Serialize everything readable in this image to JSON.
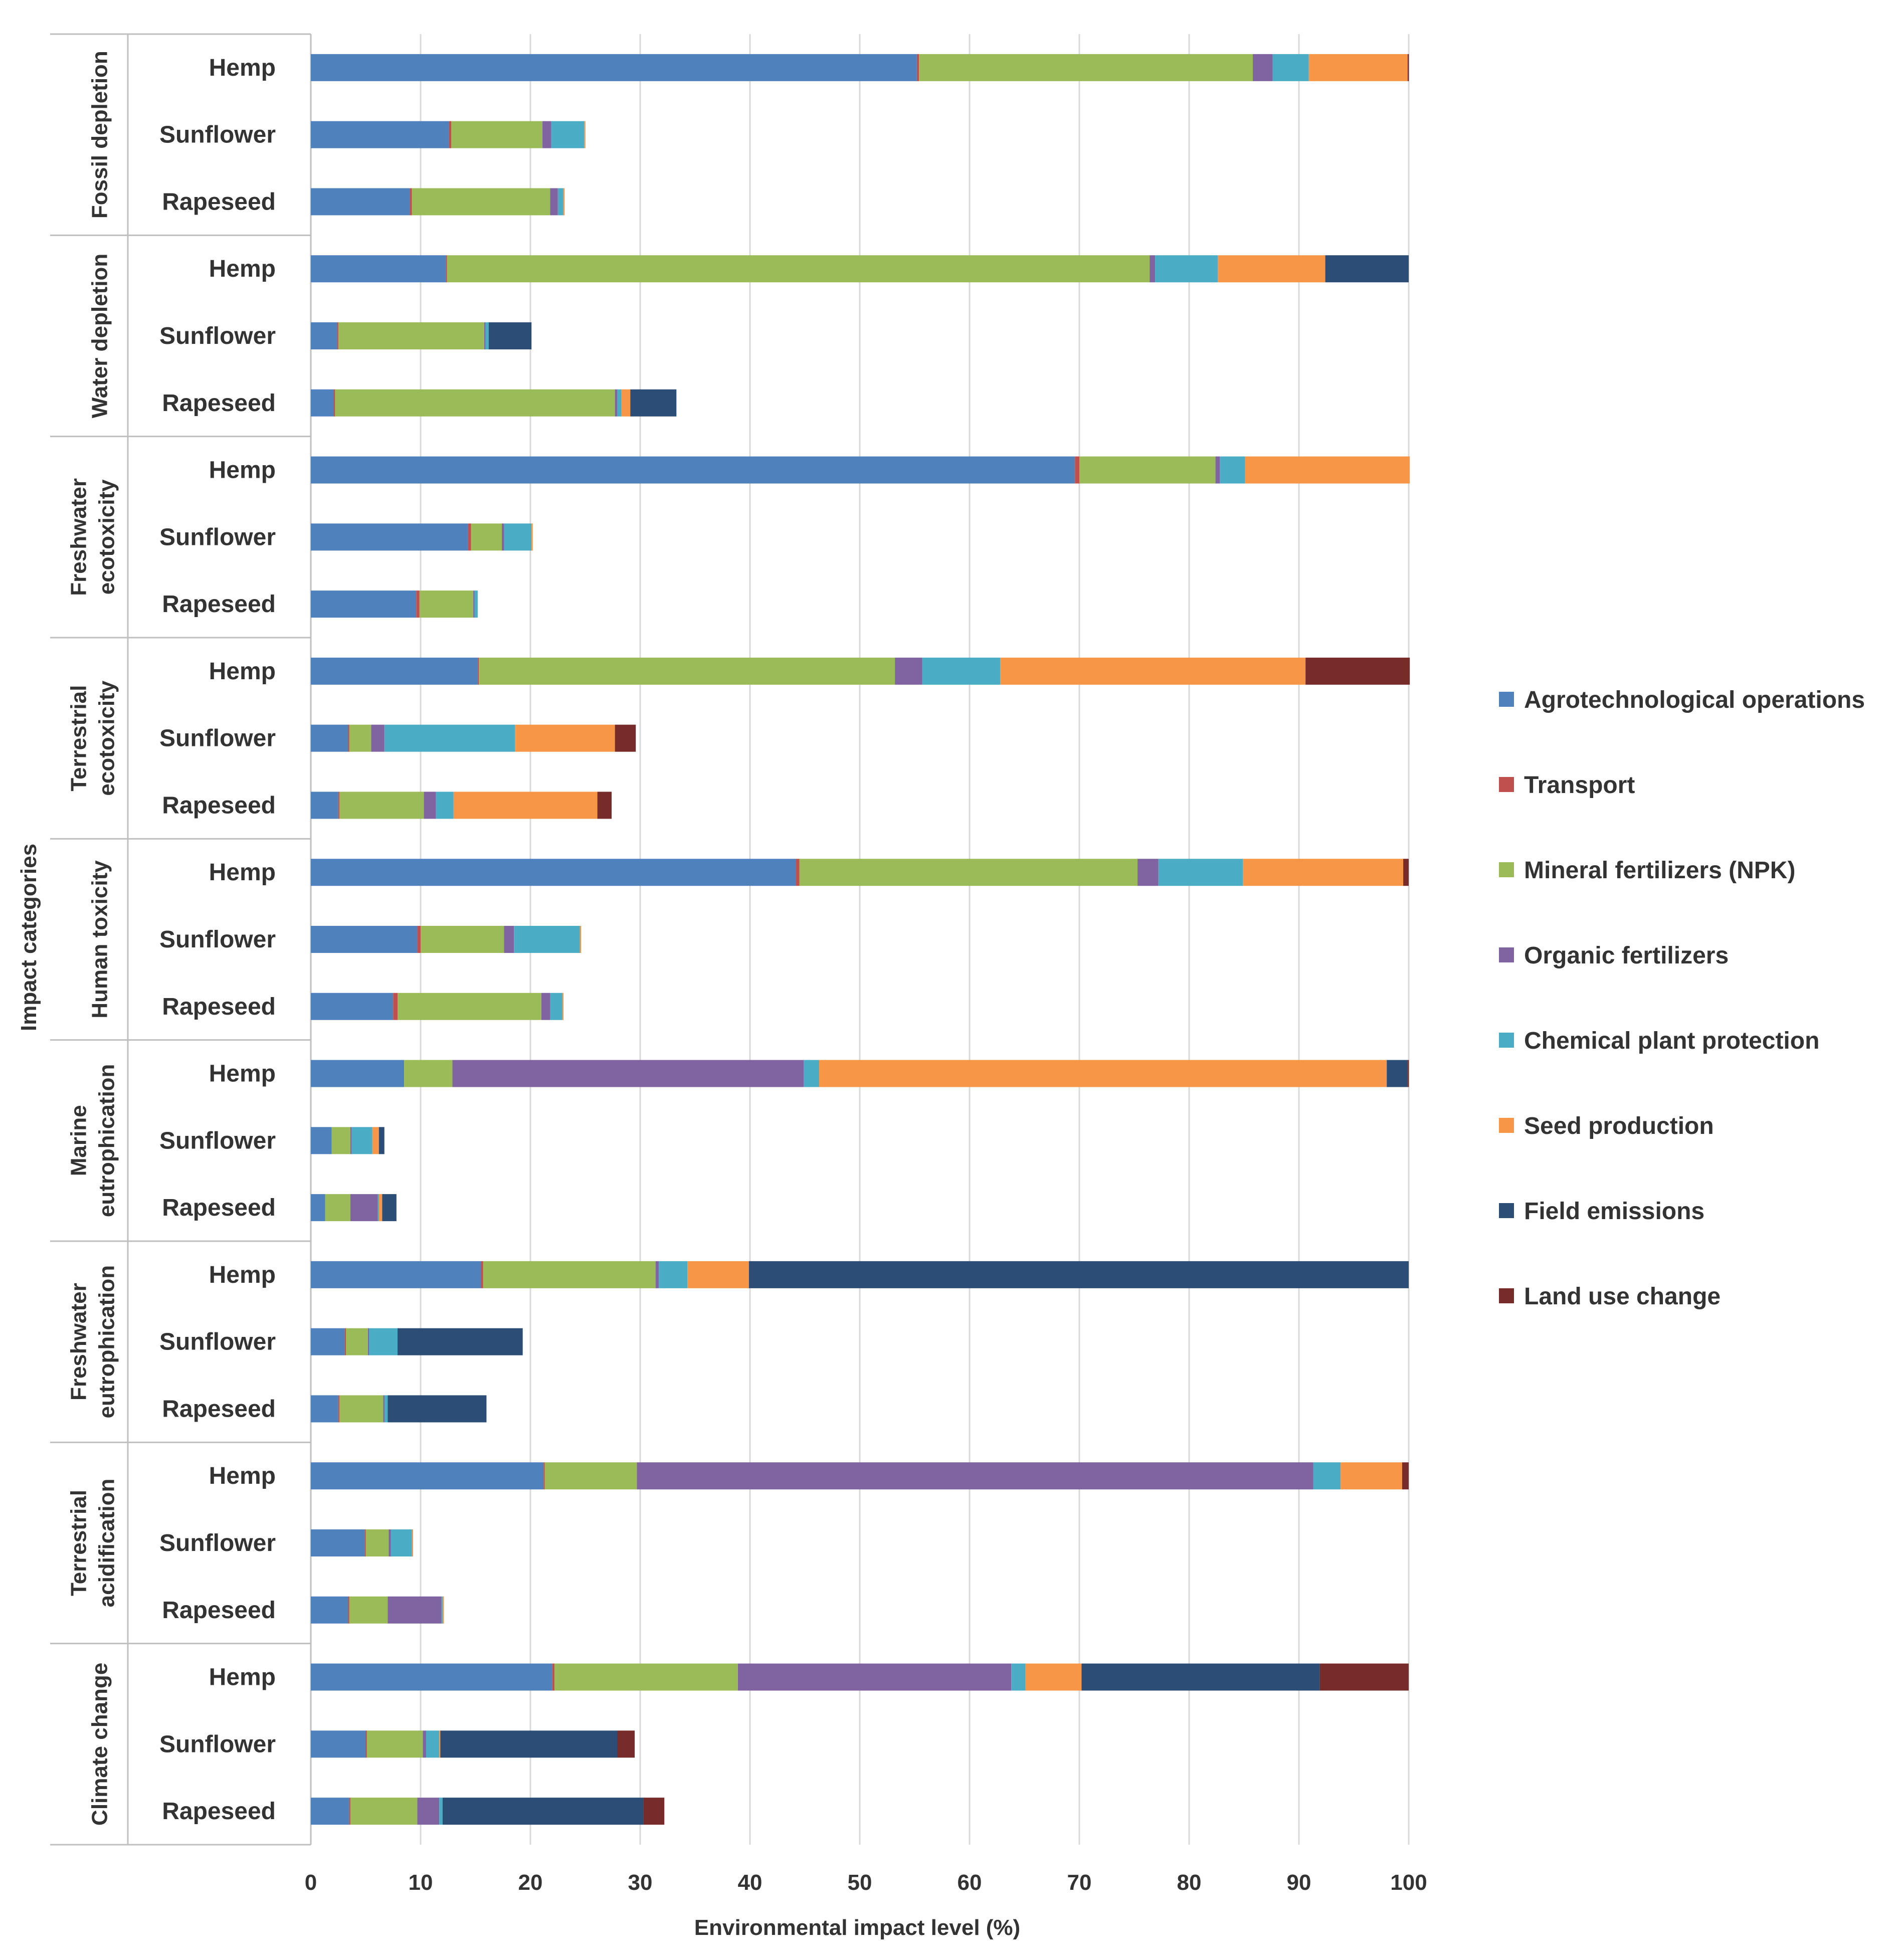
{
  "chart_data": {
    "type": "bar",
    "orientation": "horizontal",
    "stacked": true,
    "xlabel": "Environmental impact level (%)",
    "ylabel": "Impact categories",
    "xlim": [
      0,
      100
    ],
    "xticks": [
      "0",
      "10",
      "20",
      "30",
      "40",
      "50",
      "60",
      "70",
      "80",
      "90",
      "100"
    ],
    "grid": true,
    "legend_position": "right",
    "series": [
      {
        "name": "Agrotechnological operations",
        "color": "#4F81BD"
      },
      {
        "name": "Transport",
        "color": "#C0504D"
      },
      {
        "name": "Mineral fertilizers (NPK)",
        "color": "#9BBB59"
      },
      {
        "name": "Organic fertilizers",
        "color": "#8064A2"
      },
      {
        "name": "Chemical plant protection",
        "color": "#4BACC6"
      },
      {
        "name": "Seed production",
        "color": "#F79646"
      },
      {
        "name": "Field emissions",
        "color": "#2C4D75"
      },
      {
        "name": "Land use change",
        "color": "#772C2A"
      }
    ],
    "categories": [
      {
        "lines": [
          "Fossil depletion"
        ],
        "bars": [
          {
            "label": "Hemp",
            "values": [
              55.2,
              0.2,
              30.4,
              1.8,
              3.3,
              9.0,
              0.0,
              0.1
            ]
          },
          {
            "label": "Sunflower",
            "values": [
              12.6,
              0.2,
              8.3,
              0.8,
              3.0,
              0.1,
              0.0,
              0.0
            ]
          },
          {
            "label": "Rapeseed",
            "values": [
              9.0,
              0.2,
              12.6,
              0.7,
              0.5,
              0.1,
              0.0,
              0.0
            ]
          }
        ]
      },
      {
        "lines": [
          "Water depletion"
        ],
        "bars": [
          {
            "label": "Hemp",
            "values": [
              12.3,
              0.1,
              64.0,
              0.5,
              5.7,
              9.8,
              7.6,
              0.0
            ]
          },
          {
            "label": "Sunflower",
            "values": [
              2.4,
              0.1,
              13.3,
              0.1,
              0.3,
              0.0,
              3.9,
              0.0
            ]
          },
          {
            "label": "Rapeseed",
            "values": [
              2.1,
              0.1,
              25.5,
              0.2,
              0.4,
              0.8,
              4.2,
              0.0
            ]
          }
        ]
      },
      {
        "lines": [
          "Freshwater",
          "ecotoxicity"
        ],
        "bars": [
          {
            "label": "Hemp",
            "values": [
              69.6,
              0.4,
              12.4,
              0.4,
              2.3,
              15.0,
              0.0,
              0.0
            ]
          },
          {
            "label": "Sunflower",
            "values": [
              14.3,
              0.3,
              2.8,
              0.2,
              2.5,
              0.1,
              0.0,
              0.0
            ]
          },
          {
            "label": "Rapeseed",
            "values": [
              9.6,
              0.3,
              4.9,
              0.1,
              0.3,
              0.0,
              0.0,
              0.0
            ]
          }
        ]
      },
      {
        "lines": [
          "Terrestrial",
          "ecotoxicity"
        ],
        "bars": [
          {
            "label": "Hemp",
            "values": [
              15.2,
              0.1,
              37.9,
              2.5,
              7.1,
              27.8,
              0.0,
              9.5
            ]
          },
          {
            "label": "Sunflower",
            "values": [
              3.4,
              0.1,
              2.0,
              1.2,
              11.9,
              9.1,
              0.0,
              1.9
            ]
          },
          {
            "label": "Rapeseed",
            "values": [
              2.5,
              0.1,
              7.7,
              1.1,
              1.6,
              13.1,
              0.0,
              1.3
            ]
          }
        ]
      },
      {
        "lines": [
          "Human toxicity"
        ],
        "bars": [
          {
            "label": "Hemp",
            "values": [
              44.2,
              0.3,
              30.8,
              1.9,
              7.7,
              14.6,
              0.0,
              0.5
            ]
          },
          {
            "label": "Sunflower",
            "values": [
              9.7,
              0.3,
              7.6,
              0.9,
              6.0,
              0.1,
              0.0,
              0.0
            ]
          },
          {
            "label": "Rapeseed",
            "values": [
              7.5,
              0.4,
              13.1,
              0.8,
              1.1,
              0.1,
              0.0,
              0.0
            ]
          }
        ]
      },
      {
        "lines": [
          "Marine",
          "eutrophication"
        ],
        "bars": [
          {
            "label": "Hemp",
            "values": [
              8.5,
              0.0,
              4.4,
              32.0,
              1.4,
              51.7,
              1.9,
              0.1
            ]
          },
          {
            "label": "Sunflower",
            "values": [
              1.9,
              0.0,
              1.7,
              0.1,
              1.9,
              0.6,
              0.5,
              0.0
            ]
          },
          {
            "label": "Rapeseed",
            "values": [
              1.3,
              0.0,
              2.3,
              2.5,
              0.1,
              0.3,
              1.3,
              0.0
            ]
          }
        ]
      },
      {
        "lines": [
          "Freshwater",
          "eutrophication"
        ],
        "bars": [
          {
            "label": "Hemp",
            "values": [
              15.5,
              0.2,
              15.7,
              0.3,
              2.6,
              5.6,
              60.1,
              0.0
            ]
          },
          {
            "label": "Sunflower",
            "values": [
              3.1,
              0.1,
              2.0,
              0.1,
              2.6,
              0.0,
              11.4,
              0.0
            ]
          },
          {
            "label": "Rapeseed",
            "values": [
              2.5,
              0.1,
              4.0,
              0.1,
              0.3,
              0.0,
              9.0,
              0.0
            ]
          }
        ]
      },
      {
        "lines": [
          "Terrestrial",
          "acidification"
        ],
        "bars": [
          {
            "label": "Hemp",
            "values": [
              21.2,
              0.1,
              8.4,
              61.6,
              2.5,
              5.6,
              0.0,
              0.6
            ]
          },
          {
            "label": "Sunflower",
            "values": [
              4.9,
              0.1,
              2.1,
              0.2,
              1.9,
              0.1,
              0.0,
              0.0
            ]
          },
          {
            "label": "Rapeseed",
            "values": [
              3.4,
              0.1,
              3.5,
              4.9,
              0.1,
              0.1,
              0.0,
              0.0
            ]
          }
        ]
      },
      {
        "lines": [
          "Climate change"
        ],
        "bars": [
          {
            "label": "Hemp",
            "values": [
              22.0,
              0.2,
              16.7,
              24.9,
              1.3,
              5.1,
              21.7,
              8.1
            ]
          },
          {
            "label": "Sunflower",
            "values": [
              5.0,
              0.1,
              5.1,
              0.3,
              1.2,
              0.1,
              16.1,
              1.6
            ]
          },
          {
            "label": "Rapeseed",
            "values": [
              3.5,
              0.1,
              6.1,
              2.0,
              0.3,
              0.0,
              18.3,
              1.9
            ]
          }
        ]
      }
    ]
  }
}
